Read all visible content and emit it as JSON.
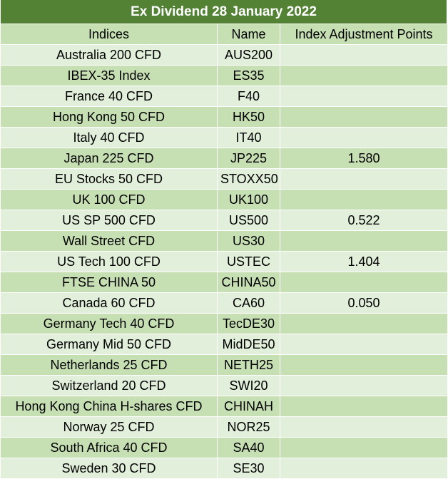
{
  "title": "Ex Dividend 28 January 2022",
  "columns": {
    "indices": "Indices",
    "name": "Name",
    "adjustment": "Index Adjustment Points"
  },
  "rows": [
    {
      "index": "Australia 200 CFD",
      "name": "AUS200",
      "points": ""
    },
    {
      "index": "IBEX-35 Index",
      "name": "ES35",
      "points": ""
    },
    {
      "index": "France 40 CFD",
      "name": "F40",
      "points": ""
    },
    {
      "index": "Hong Kong 50 CFD",
      "name": "HK50",
      "points": ""
    },
    {
      "index": "Italy 40 CFD",
      "name": "IT40",
      "points": ""
    },
    {
      "index": "Japan 225 CFD",
      "name": "JP225",
      "points": "1.580"
    },
    {
      "index": "EU Stocks 50 CFD",
      "name": "STOXX50",
      "points": ""
    },
    {
      "index": "UK 100 CFD",
      "name": "UK100",
      "points": ""
    },
    {
      "index": "US SP 500 CFD",
      "name": "US500",
      "points": "0.522"
    },
    {
      "index": "Wall Street CFD",
      "name": "US30",
      "points": ""
    },
    {
      "index": "US Tech 100 CFD",
      "name": "USTEC",
      "points": "1.404"
    },
    {
      "index": "FTSE CHINA 50",
      "name": "CHINA50",
      "points": ""
    },
    {
      "index": "Canada 60 CFD",
      "name": "CA60",
      "points": "0.050"
    },
    {
      "index": "Germany Tech 40 CFD",
      "name": "TecDE30",
      "points": ""
    },
    {
      "index": "Germany Mid 50 CFD",
      "name": "MidDE50",
      "points": ""
    },
    {
      "index": "Netherlands 25 CFD",
      "name": "NETH25",
      "points": ""
    },
    {
      "index": "Switzerland 20 CFD",
      "name": "SWI20",
      "points": ""
    },
    {
      "index": "Hong Kong China H-shares CFD",
      "name": "CHINAH",
      "points": ""
    },
    {
      "index": "Norway 25 CFD",
      "name": "NOR25",
      "points": ""
    },
    {
      "index": "South Africa 40 CFD",
      "name": "SA40",
      "points": ""
    },
    {
      "index": "Sweden 30 CFD",
      "name": "SE30",
      "points": ""
    }
  ]
}
